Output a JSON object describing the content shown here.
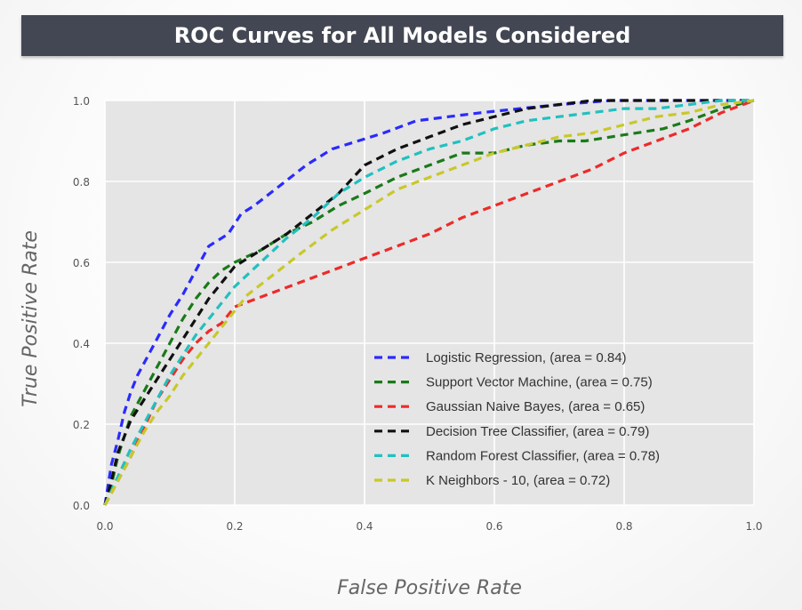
{
  "slide": {
    "title": "ROC Curves for All Models Considered"
  },
  "chart_data": {
    "type": "line",
    "xlabel": "False Positive Rate",
    "ylabel": "True Positive Rate",
    "xlim": [
      0.0,
      1.0
    ],
    "ylim": [
      0.0,
      1.0
    ],
    "xticks": [
      "0.0",
      "0.2",
      "0.4",
      "0.6",
      "0.8",
      "1.0"
    ],
    "yticks": [
      "0.0",
      "0.2",
      "0.4",
      "0.6",
      "0.8",
      "1.0"
    ],
    "grid": true,
    "legend_position": "lower-right",
    "background": "#e5e5e5",
    "series": [
      {
        "name": "Logistic Regression, (area = 0.84)",
        "color": "#2a2aff",
        "x": [
          0.0,
          0.01,
          0.02,
          0.03,
          0.04,
          0.05,
          0.06,
          0.08,
          0.1,
          0.12,
          0.14,
          0.16,
          0.19,
          0.21,
          0.23,
          0.27,
          0.31,
          0.35,
          0.39,
          0.43,
          0.48,
          0.53,
          0.58,
          0.64,
          0.7,
          0.78,
          0.86,
          0.93,
          1.0
        ],
        "y": [
          0.0,
          0.1,
          0.16,
          0.23,
          0.28,
          0.32,
          0.35,
          0.41,
          0.47,
          0.52,
          0.58,
          0.64,
          0.67,
          0.72,
          0.74,
          0.79,
          0.84,
          0.88,
          0.9,
          0.92,
          0.95,
          0.96,
          0.97,
          0.98,
          0.99,
          1.0,
          1.0,
          1.0,
          1.0
        ]
      },
      {
        "name": "Support Vector Machine, (area = 0.75)",
        "color": "#1a7a1a",
        "x": [
          0.0,
          0.01,
          0.02,
          0.04,
          0.06,
          0.08,
          0.1,
          0.12,
          0.14,
          0.16,
          0.18,
          0.2,
          0.24,
          0.28,
          0.32,
          0.36,
          0.4,
          0.45,
          0.5,
          0.55,
          0.6,
          0.65,
          0.7,
          0.74,
          0.78,
          0.82,
          0.86,
          0.9,
          0.95,
          1.0
        ],
        "y": [
          0.0,
          0.05,
          0.12,
          0.22,
          0.28,
          0.34,
          0.4,
          0.46,
          0.51,
          0.55,
          0.58,
          0.6,
          0.63,
          0.67,
          0.7,
          0.74,
          0.77,
          0.81,
          0.84,
          0.87,
          0.87,
          0.89,
          0.9,
          0.9,
          0.91,
          0.92,
          0.93,
          0.95,
          0.98,
          1.0
        ]
      },
      {
        "name": "Gaussian Naive Bayes, (area = 0.65)",
        "color": "#ee2a2a",
        "x": [
          0.0,
          0.02,
          0.04,
          0.06,
          0.08,
          0.1,
          0.12,
          0.14,
          0.16,
          0.18,
          0.2,
          0.25,
          0.3,
          0.35,
          0.4,
          0.45,
          0.5,
          0.55,
          0.6,
          0.65,
          0.7,
          0.75,
          0.8,
          0.85,
          0.9,
          0.95,
          1.0
        ],
        "y": [
          0.0,
          0.06,
          0.12,
          0.19,
          0.26,
          0.31,
          0.36,
          0.4,
          0.43,
          0.45,
          0.49,
          0.52,
          0.55,
          0.58,
          0.61,
          0.64,
          0.67,
          0.71,
          0.74,
          0.77,
          0.8,
          0.83,
          0.87,
          0.9,
          0.93,
          0.97,
          1.0
        ]
      },
      {
        "name": "Decision Tree Classifier, (area = 0.79)",
        "color": "#111111",
        "x": [
          0.0,
          0.01,
          0.02,
          0.04,
          0.06,
          0.08,
          0.1,
          0.12,
          0.14,
          0.16,
          0.18,
          0.2,
          0.24,
          0.28,
          0.32,
          0.36,
          0.4,
          0.45,
          0.5,
          0.55,
          0.6,
          0.65,
          0.7,
          0.75,
          0.8,
          0.85,
          0.9,
          0.95,
          1.0
        ],
        "y": [
          0.0,
          0.06,
          0.13,
          0.21,
          0.26,
          0.31,
          0.36,
          0.41,
          0.46,
          0.51,
          0.55,
          0.59,
          0.63,
          0.67,
          0.72,
          0.77,
          0.84,
          0.88,
          0.91,
          0.94,
          0.96,
          0.98,
          0.99,
          1.0,
          1.0,
          1.0,
          1.0,
          1.0,
          1.0
        ]
      },
      {
        "name": "Random Forest Classifier, (area = 0.78)",
        "color": "#22c0c0",
        "x": [
          0.0,
          0.02,
          0.04,
          0.06,
          0.08,
          0.1,
          0.12,
          0.14,
          0.16,
          0.18,
          0.2,
          0.24,
          0.28,
          0.32,
          0.36,
          0.4,
          0.45,
          0.5,
          0.55,
          0.6,
          0.65,
          0.7,
          0.75,
          0.8,
          0.85,
          0.9,
          0.95,
          1.0
        ],
        "y": [
          0.0,
          0.07,
          0.14,
          0.2,
          0.26,
          0.32,
          0.37,
          0.42,
          0.46,
          0.5,
          0.54,
          0.6,
          0.66,
          0.71,
          0.77,
          0.81,
          0.85,
          0.88,
          0.9,
          0.93,
          0.95,
          0.96,
          0.97,
          0.98,
          0.98,
          0.99,
          1.0,
          1.0
        ]
      },
      {
        "name": "K Neighbors - 10, (area = 0.72)",
        "color": "#c8c82a",
        "x": [
          0.0,
          0.02,
          0.04,
          0.06,
          0.08,
          0.1,
          0.12,
          0.14,
          0.16,
          0.18,
          0.2,
          0.22,
          0.26,
          0.3,
          0.35,
          0.4,
          0.45,
          0.5,
          0.55,
          0.6,
          0.65,
          0.7,
          0.75,
          0.8,
          0.85,
          0.9,
          0.95,
          1.0
        ],
        "y": [
          0.0,
          0.06,
          0.12,
          0.18,
          0.23,
          0.27,
          0.32,
          0.36,
          0.4,
          0.44,
          0.48,
          0.52,
          0.57,
          0.62,
          0.68,
          0.73,
          0.78,
          0.81,
          0.84,
          0.87,
          0.89,
          0.91,
          0.92,
          0.94,
          0.96,
          0.97,
          0.99,
          1.0
        ]
      }
    ]
  }
}
